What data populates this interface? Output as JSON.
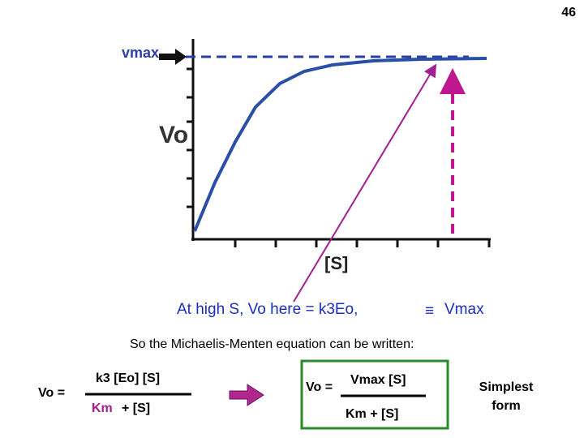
{
  "page_number": "46",
  "graph": {
    "y_marker": "vmax",
    "y_label": "Vo",
    "x_label": "[S]"
  },
  "caption": {
    "text": "At high S, Vo here = k3Eo,",
    "symbol": "≡",
    "term": "Vmax"
  },
  "intro": "So the Michaelis-Menten equation can be written:",
  "equation_1": {
    "lhs": "Vo =",
    "numerator": "k3 [Eo] [S]",
    "denominator_km": "Km",
    "denominator_rest": "+ [S]"
  },
  "equation_2": {
    "lhs": "Vo =",
    "numerator": "Vmax [S]",
    "denominator": "Km + [S]"
  },
  "note": [
    "Simplest",
    "form"
  ]
}
